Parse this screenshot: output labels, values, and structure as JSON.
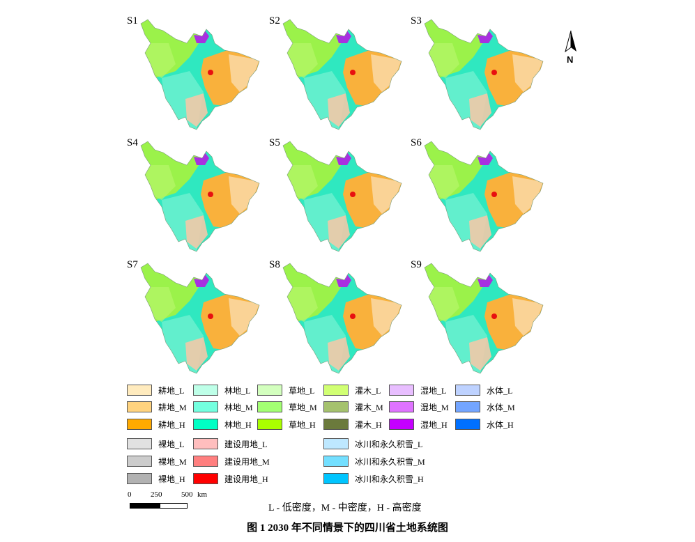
{
  "panels": [
    {
      "label": "S1"
    },
    {
      "label": "S2"
    },
    {
      "label": "S3"
    },
    {
      "label": "S4"
    },
    {
      "label": "S5"
    },
    {
      "label": "S6"
    },
    {
      "label": "S7"
    },
    {
      "label": "S8"
    },
    {
      "label": "S9"
    }
  ],
  "north_arrow": {
    "letter": "N"
  },
  "legend": [
    {
      "label": "耕地_L",
      "color": "#FFEBBE"
    },
    {
      "label": "林地_L",
      "color": "#BEFFE8"
    },
    {
      "label": "草地_L",
      "color": "#D3FFBE"
    },
    {
      "label": "灌木_L",
      "color": "#D1FF73"
    },
    {
      "label": "湿地_L",
      "color": "#E8BEFF"
    },
    {
      "label": "水体_L",
      "color": "#BED2FF"
    },
    {
      "label": "耕地_M",
      "color": "#FFD37F"
    },
    {
      "label": "林地_M",
      "color": "#73FFDF"
    },
    {
      "label": "草地_M",
      "color": "#A3FF73"
    },
    {
      "label": "灌木_M",
      "color": "#A5C26E"
    },
    {
      "label": "湿地_M",
      "color": "#DF73FF"
    },
    {
      "label": "水体_M",
      "color": "#73A5FF"
    },
    {
      "label": "耕地_H",
      "color": "#FFAA00"
    },
    {
      "label": "林地_H",
      "color": "#00FFC5"
    },
    {
      "label": "草地_H",
      "color": "#AAFF00"
    },
    {
      "label": "灌木_H",
      "color": "#6B7A3C"
    },
    {
      "label": "湿地_H",
      "color": "#C500FF"
    },
    {
      "label": "水体_H",
      "color": "#0070FF"
    },
    {
      "label": "裸地_L",
      "color": "#E1E1E1"
    },
    {
      "label": "建设用地_L",
      "color": "#FFBEBE"
    },
    {
      "label": "冰川和永久积雪_L",
      "color": "#BEE8FF"
    },
    {
      "label": "裸地_M",
      "color": "#CCCCCC"
    },
    {
      "label": "建设用地_M",
      "color": "#FF7F7F"
    },
    {
      "label": "冰川和永久积雪_M",
      "color": "#73DFFF"
    },
    {
      "label": "裸地_H",
      "color": "#B2B2B2"
    },
    {
      "label": "建设用地_H",
      "color": "#FF0000"
    },
    {
      "label": "冰川和永久积雪_H",
      "color": "#00C5FF"
    }
  ],
  "scale_bar": {
    "ticks": [
      "0",
      "250",
      "500"
    ],
    "unit": "km"
  },
  "abbreviation_note": "L - 低密度，M - 中密度，H - 高密度",
  "caption": "图 1 2030 年不同情景下的四川省土地系统图"
}
